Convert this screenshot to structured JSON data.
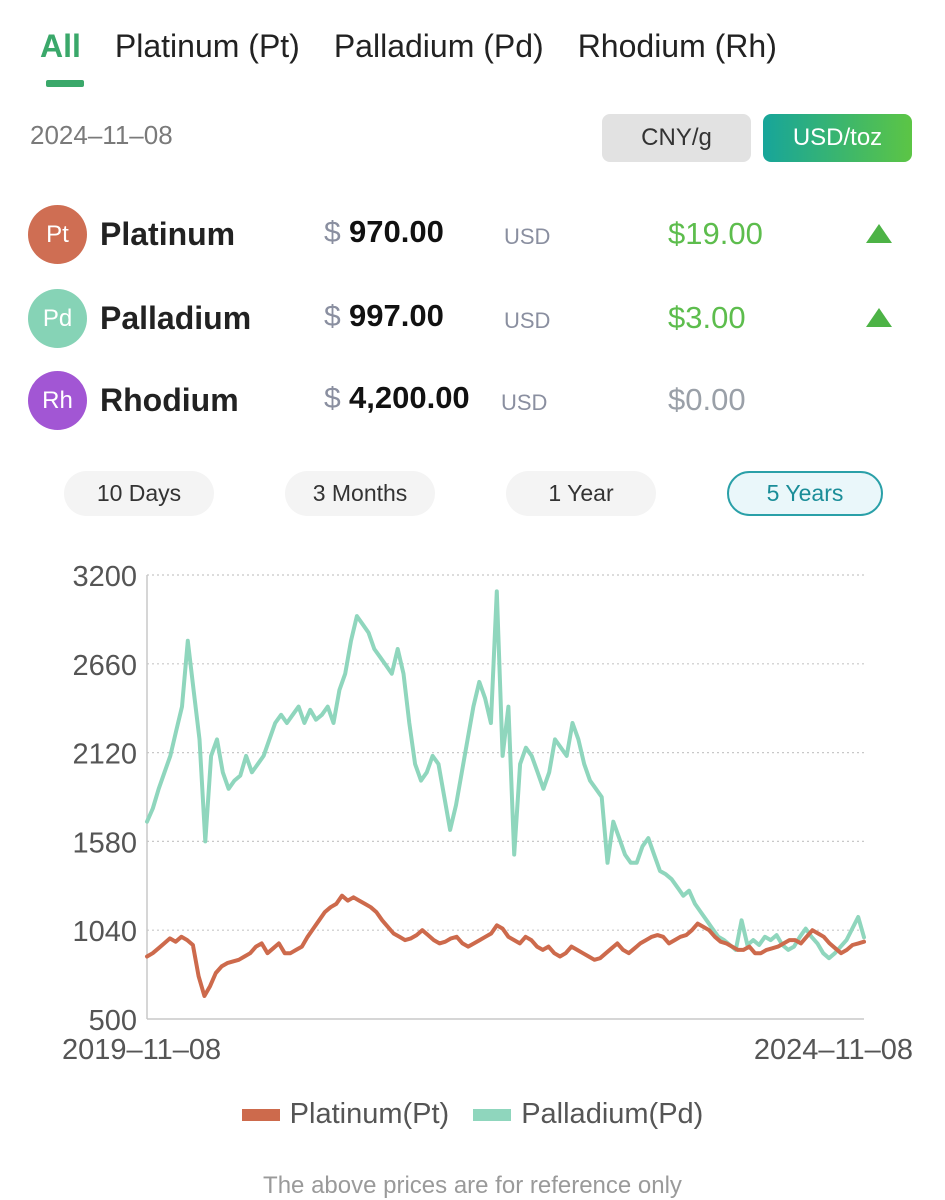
{
  "tabs": [
    {
      "label": "All"
    },
    {
      "label": "Platinum (Pt)"
    },
    {
      "label": "Palladium (Pd)"
    },
    {
      "label": "Rhodium (Rh)"
    }
  ],
  "date": "2024–11–08",
  "units": {
    "cny": "CNY/g",
    "usd": "USD/toz",
    "selected": "USD/toz"
  },
  "metals": [
    {
      "symbol": "Pt",
      "name": "Platinum",
      "currency_symbol": "$",
      "price": "970.00",
      "currency": "USD",
      "change": "$19.00",
      "trend": "up",
      "badge_color": "#cf6e53",
      "change_color": "#5dbd4d"
    },
    {
      "symbol": "Pd",
      "name": "Palladium",
      "currency_symbol": "$",
      "price": "997.00",
      "currency": "USD",
      "change": "$3.00",
      "trend": "up",
      "badge_color": "#86d3b6",
      "change_color": "#5dbd4d"
    },
    {
      "symbol": "Rh",
      "name": "Rhodium",
      "currency_symbol": "$",
      "price": "4,200.00",
      "currency": "USD",
      "change": "$0.00",
      "trend": "flat",
      "badge_color": "#a256d4",
      "change_color": "#9aa0a8"
    }
  ],
  "ranges": [
    {
      "label": "10 Days"
    },
    {
      "label": "3 Months"
    },
    {
      "label": "1 Year"
    },
    {
      "label": "5 Years"
    }
  ],
  "selected_range": "5 Years",
  "colors": {
    "accent": "#3aa86a",
    "platinum_line": "#cd6a4c",
    "palladium_line": "#8fd6bd",
    "up": "#4db346"
  },
  "chart_data": {
    "type": "line",
    "x_labels": [
      "2019–11–08",
      "2024–11–08"
    ],
    "yticks": [
      500,
      1040,
      1580,
      2120,
      2660,
      3200
    ],
    "ylim": [
      500,
      3200
    ],
    "grid": true,
    "legend": "bottom",
    "series": [
      {
        "name": "Platinum(Pt)",
        "color": "#cd6a4c",
        "values": [
          880,
          900,
          930,
          960,
          990,
          970,
          1000,
          980,
          950,
          760,
          640,
          700,
          780,
          820,
          840,
          850,
          860,
          880,
          900,
          940,
          960,
          900,
          930,
          960,
          900,
          900,
          920,
          940,
          1000,
          1050,
          1100,
          1150,
          1180,
          1200,
          1250,
          1220,
          1240,
          1220,
          1200,
          1180,
          1150,
          1100,
          1060,
          1020,
          1000,
          980,
          990,
          1010,
          1040,
          1010,
          980,
          960,
          970,
          990,
          1000,
          960,
          940,
          960,
          980,
          1000,
          1020,
          1070,
          1050,
          1000,
          980,
          960,
          1000,
          980,
          940,
          920,
          940,
          900,
          880,
          900,
          940,
          920,
          900,
          880,
          860,
          870,
          900,
          930,
          960,
          920,
          900,
          930,
          960,
          980,
          1000,
          1010,
          1000,
          960,
          980,
          1000,
          1010,
          1040,
          1080,
          1060,
          1040,
          1000,
          970,
          960,
          940,
          920,
          920,
          940,
          900,
          900,
          920,
          930,
          940,
          960,
          980,
          980,
          960,
          1000,
          1040,
          1020,
          1000,
          960,
          930,
          900,
          920,
          950,
          960,
          970
        ]
      },
      {
        "name": "Palladium(Pd)",
        "color": "#8fd6bd",
        "values": [
          1700,
          1780,
          1900,
          2000,
          2100,
          2250,
          2400,
          2800,
          2500,
          2200,
          1580,
          2100,
          2200,
          2000,
          1900,
          1950,
          1980,
          2100,
          2000,
          2050,
          2100,
          2200,
          2300,
          2350,
          2300,
          2350,
          2400,
          2300,
          2380,
          2320,
          2350,
          2400,
          2300,
          2500,
          2600,
          2800,
          2950,
          2900,
          2850,
          2750,
          2700,
          2650,
          2600,
          2750,
          2600,
          2300,
          2050,
          1950,
          2000,
          2100,
          2050,
          1850,
          1650,
          1800,
          2000,
          2200,
          2400,
          2550,
          2450,
          2300,
          3100,
          2100,
          2400,
          1500,
          2050,
          2150,
          2100,
          2000,
          1900,
          2000,
          2200,
          2150,
          2100,
          2300,
          2200,
          2050,
          1950,
          1900,
          1850,
          1450,
          1700,
          1600,
          1500,
          1450,
          1450,
          1550,
          1600,
          1500,
          1400,
          1380,
          1350,
          1300,
          1250,
          1280,
          1200,
          1150,
          1100,
          1050,
          1000,
          980,
          950,
          920,
          1100,
          950,
          980,
          950,
          1000,
          980,
          1010,
          950,
          920,
          940,
          1000,
          1050,
          1000,
          960,
          900,
          870,
          900,
          940,
          980,
          1050,
          1120,
          997
        ]
      }
    ]
  },
  "footer": "The above prices are for reference only"
}
